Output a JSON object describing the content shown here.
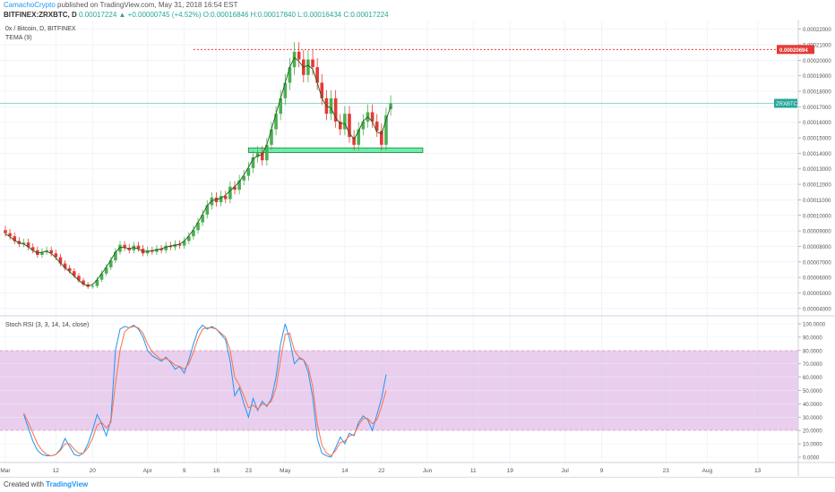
{
  "header": {
    "author": "CamachoCrypto",
    "published": "published on TradingView.com, May 31, 2018 16:54 EST",
    "symbol": "BITFINEX:ZRXBTC, D",
    "change": "0.00017224 ▲ +0.00000745 (+4.52%)",
    "ohlc": "O:0.00016846 H:0.00017840 L:0.00016434 C:0.00017224"
  },
  "legend": {
    "title": "0x / Bitcoin, D, BITFINEX",
    "indicator": "TEMA (9)",
    "rsi_label": "Stoch RSI (3, 3, 14, 14, close)"
  },
  "footer": {
    "created": "Created with",
    "brand": "TradingView"
  },
  "colors": {
    "up": "#26a69a",
    "down": "#ef5350",
    "candle_up": "#4caf50",
    "candle_down": "#e53935",
    "support_zone": "#69f0ae",
    "resistance": "#e53935",
    "rsi_k": "#2196f3",
    "rsi_d": "#ff7043",
    "rsi_band": "#e1bee7"
  },
  "chart_data": [
    {
      "type": "candlestick",
      "title": "0x / Bitcoin, D, BITFINEX",
      "x_labels": [
        "Mar",
        "12",
        "20",
        "Apr",
        "9",
        "16",
        "23",
        "May",
        "14",
        "22",
        "Jun",
        "11",
        "19",
        "Jul",
        "9",
        "23",
        "Aug",
        "13"
      ],
      "x_label_days": [
        0,
        11,
        19,
        31,
        39,
        46,
        53,
        61,
        74,
        82,
        92,
        102,
        110,
        122,
        130,
        144,
        153,
        164
      ],
      "y_ticks": [
        "0.00022000",
        "0.00021000",
        "0.00020000",
        "0.00019000",
        "0.00018000",
        "0.00017000",
        "0.00016000",
        "0.00015000",
        "0.00014000",
        "0.00013000",
        "0.00012000",
        "0.00011000",
        "0.00010000",
        "0.00009000",
        "0.00008000",
        "0.00007000",
        "0.00006000",
        "0.00005000",
        "0.00004000"
      ],
      "ylim": [
        3.7e-05,
        0.000225
      ],
      "current_price_label": "ZRXBTC",
      "current_price": 0.00017224,
      "resistance_label": "0.00020694",
      "resistance": 0.00020694,
      "support_zone": {
        "low": 0.0001405,
        "high": 0.0001435,
        "from_day": 53,
        "to_day": 91
      },
      "closes": [
        8.85e-05,
        8.65e-05,
        8.35e-05,
        8.15e-05,
        8.25e-05,
        7.95e-05,
        7.75e-05,
        7.45e-05,
        7.65e-05,
        7.75e-05,
        7.55e-05,
        7.3e-05,
        6.9e-05,
        6.6e-05,
        6.4e-05,
        6.1e-05,
        5.8e-05,
        5.55e-05,
        5.4e-05,
        5.45e-05,
        5.85e-05,
        6.25e-05,
        6.65e-05,
        7.1e-05,
        7.65e-05,
        8.1e-05,
        7.9e-05,
        7.75e-05,
        8.05e-05,
        7.85e-05,
        7.55e-05,
        7.75e-05,
        7.65e-05,
        7.85e-05,
        7.75e-05,
        8.05e-05,
        7.95e-05,
        8.15e-05,
        8.05e-05,
        8.35e-05,
        8.65e-05,
        9.05e-05,
        9.55e-05,
        0.0001005,
        0.0001065,
        0.0001115,
        0.0001085,
        0.0001125,
        0.0001105,
        0.0001185,
        0.0001165,
        0.0001225,
        0.0001255,
        0.0001305,
        0.0001375,
        0.0001405,
        0.0001355,
        0.0001455,
        0.0001555,
        0.0001655,
        0.0001755,
        0.0001855,
        0.0001955,
        0.0002055,
        0.0002005,
        0.0001905,
        0.0002005,
        0.0001955,
        0.0001855,
        0.0001755,
        0.0001655,
        0.0001755,
        0.0001605,
        0.0001555,
        0.0001655,
        0.0001505,
        0.0001455,
        0.0001555,
        0.0001605,
        0.0001665,
        0.0001605,
        0.0001545,
        0.0001455,
        0.0001645,
        0.0001722
      ],
      "opens": [
        9.05e-05,
        8.85e-05,
        8.65e-05,
        8.35e-05,
        8.15e-05,
        8.25e-05,
        7.95e-05,
        7.75e-05,
        7.45e-05,
        7.65e-05,
        7.75e-05,
        7.55e-05,
        7.3e-05,
        6.9e-05,
        6.6e-05,
        6.4e-05,
        6.1e-05,
        5.8e-05,
        5.55e-05,
        5.4e-05,
        5.45e-05,
        5.85e-05,
        6.25e-05,
        6.65e-05,
        7.1e-05,
        7.65e-05,
        8.1e-05,
        7.9e-05,
        7.75e-05,
        8.05e-05,
        7.85e-05,
        7.55e-05,
        7.75e-05,
        7.65e-05,
        7.85e-05,
        7.75e-05,
        8.05e-05,
        7.95e-05,
        8.15e-05,
        8.05e-05,
        8.35e-05,
        8.65e-05,
        9.05e-05,
        9.55e-05,
        0.0001005,
        0.0001065,
        0.0001115,
        0.0001085,
        0.0001125,
        0.0001105,
        0.0001185,
        0.0001165,
        0.0001225,
        0.0001255,
        0.0001305,
        0.0001375,
        0.0001405,
        0.0001355,
        0.0001455,
        0.0001555,
        0.0001655,
        0.0001755,
        0.0001855,
        0.0001955,
        0.0002055,
        0.0002005,
        0.0001905,
        0.0002005,
        0.0001955,
        0.0001855,
        0.0001755,
        0.0001655,
        0.0001755,
        0.0001605,
        0.0001555,
        0.0001655,
        0.0001505,
        0.0001455,
        0.0001555,
        0.0001605,
        0.0001665,
        0.0001605,
        0.0001545,
        0.0001455,
        0.00016846
      ],
      "first_day": 0
    },
    {
      "type": "line",
      "title": "Stoch RSI (3, 3, 14, 14, close)",
      "y_ticks": [
        "100.0000",
        "90.0000",
        "80.0000",
        "70.0000",
        "60.0000",
        "50.0000",
        "40.0000",
        "30.0000",
        "20.0000",
        "10.0000",
        "0.0000"
      ],
      "ylim": [
        -4,
        104
      ],
      "band": [
        20,
        80
      ],
      "series": [
        {
          "values": [
            32,
            22,
            12,
            5,
            2,
            1,
            1,
            2,
            6,
            14,
            8,
            2,
            1,
            3,
            10,
            20,
            32,
            25,
            16,
            28,
            80,
            96,
            98,
            97,
            99,
            96,
            90,
            80,
            76,
            74,
            72,
            75,
            71,
            66,
            68,
            63,
            73,
            85,
            95,
            99,
            96,
            98,
            96,
            92,
            88,
            72,
            46,
            52,
            40,
            30,
            44,
            35,
            42,
            38,
            44,
            60,
            85,
            100,
            88,
            70,
            74,
            73,
            64,
            45,
            14,
            3,
            1,
            0,
            7,
            15,
            10,
            18,
            16,
            26,
            31,
            28,
            20,
            32,
            44,
            62
          ]
        },
        {
          "values": [
            33,
            26,
            18,
            10,
            5,
            2,
            1,
            2,
            5,
            10,
            10,
            6,
            3,
            3,
            7,
            14,
            24,
            26,
            22,
            26,
            55,
            80,
            94,
            97,
            98,
            97,
            93,
            85,
            79,
            76,
            73,
            74,
            72,
            69,
            68,
            66,
            70,
            79,
            89,
            96,
            97,
            97,
            96,
            93,
            90,
            80,
            60,
            54,
            46,
            37,
            39,
            36,
            40,
            39,
            42,
            52,
            73,
            92,
            93,
            80,
            75,
            73,
            68,
            53,
            25,
            9,
            3,
            1,
            5,
            11,
            12,
            16,
            17,
            24,
            29,
            29,
            25,
            28,
            38,
            50
          ]
        }
      ]
    }
  ]
}
